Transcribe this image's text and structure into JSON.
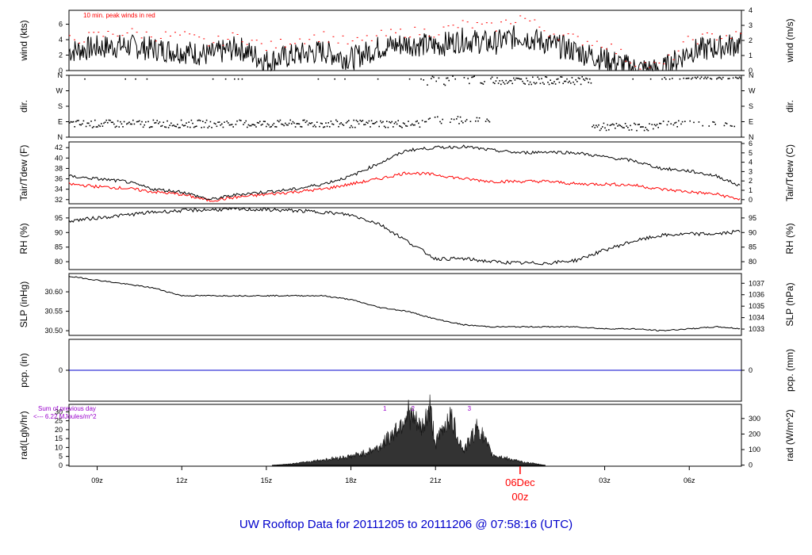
{
  "page_title": "UW Rooftop Data for 20111205  to  20111206 @ 07:58:16  (UTC)",
  "x_axis": {
    "ticks": [
      "09z",
      "12z",
      "15z",
      "18z",
      "21z",
      "03z",
      "06z"
    ],
    "day_label": "06Dec",
    "day_time": "00z",
    "range_hours": [
      8.0,
      31.85
    ]
  },
  "colors": {
    "axis": "#000000",
    "red": "#ff0000",
    "blue": "#0000cc",
    "purple": "#9900cc",
    "title": "#0000cc"
  },
  "panels": {
    "wind": {
      "left_label": "wind (kts)",
      "right_label": "wind (m/s)",
      "note": "10 min. peak winds in red",
      "left_ticks": [
        "0",
        "2",
        "4",
        "6"
      ],
      "right_ticks": [
        "0",
        "1",
        "2",
        "3",
        "4"
      ]
    },
    "dir": {
      "left_label": "dir.",
      "right_label": "dir.",
      "left_ticks": [
        "N",
        "E",
        "S",
        "W",
        "N"
      ],
      "right_ticks": [
        "N",
        "E",
        "S",
        "W",
        "N"
      ]
    },
    "temp": {
      "left_label": "Tair/Tdew (F)",
      "right_label": "Tair/Tdew (C)",
      "left_ticks": [
        "32",
        "34",
        "36",
        "38",
        "40",
        "42"
      ],
      "right_ticks": [
        "0",
        "1",
        "2",
        "3",
        "4",
        "5",
        "6"
      ]
    },
    "rh": {
      "left_label": "RH (%)",
      "right_label": "RH (%)",
      "left_ticks": [
        "80",
        "85",
        "90",
        "95"
      ],
      "right_ticks": [
        "80",
        "85",
        "90",
        "95"
      ]
    },
    "slp": {
      "left_label": "SLP (inHg)",
      "right_label": "SLP (hPa)",
      "left_ticks": [
        "30.50",
        "30.55",
        "30.60"
      ],
      "right_ticks": [
        "1033",
        "1034",
        "1035",
        "1036",
        "1037"
      ]
    },
    "pcp": {
      "left_label": "pcp. (in)",
      "right_label": "pcp. (mm)",
      "left_ticks": [
        "0"
      ],
      "right_ticks": [
        "0"
      ]
    },
    "rad": {
      "left_label": "rad(Lgly/hr)",
      "right_label": "rad (W/m^2)",
      "left_ticks": [
        "0",
        "5",
        "10",
        "15",
        "20",
        "25",
        "30"
      ],
      "right_ticks": [
        "0",
        "100",
        "200",
        "300"
      ],
      "note_line1": "Sum of previous day",
      "note_line2": "<--- 6.22 MJoules/m^2",
      "markers": [
        "1",
        "2",
        "3"
      ]
    }
  },
  "chart_data": {
    "type": "line",
    "x_unit": "hours UTC from 20111205 00z",
    "series": [
      {
        "name": "Tair",
        "unit": "F",
        "x": [
          8,
          9,
          10,
          11,
          12,
          13,
          14,
          15,
          16,
          17,
          18,
          19,
          20,
          21,
          22,
          23,
          24,
          25,
          26,
          27,
          28,
          29,
          30,
          31,
          31.85
        ],
        "y": [
          36.5,
          36.0,
          35.5,
          34.0,
          33.5,
          32.0,
          33.0,
          33.5,
          34.0,
          35.0,
          36.5,
          39.0,
          41.5,
          42.0,
          42.2,
          41.5,
          41.0,
          41.2,
          41.0,
          40.2,
          39.5,
          38.0,
          37.5,
          36.5,
          34.5
        ]
      },
      {
        "name": "Tdew",
        "unit": "F",
        "x": [
          8,
          9,
          10,
          11,
          12,
          13,
          14,
          15,
          16,
          17,
          18,
          19,
          20,
          21,
          22,
          23,
          24,
          25,
          26,
          27,
          28,
          29,
          30,
          31,
          31.85
        ],
        "y": [
          35.0,
          34.5,
          34.2,
          33.5,
          33.0,
          31.8,
          32.5,
          33.0,
          33.5,
          34.0,
          35.0,
          36.0,
          37.2,
          36.8,
          36.0,
          35.5,
          35.5,
          35.5,
          35.0,
          35.0,
          34.8,
          34.0,
          33.5,
          33.0,
          32.0
        ]
      },
      {
        "name": "RH",
        "unit": "%",
        "x": [
          8,
          9,
          10,
          11,
          12,
          13,
          14,
          15,
          16,
          17,
          18,
          19,
          20,
          21,
          22,
          23,
          24,
          25,
          26,
          27,
          28,
          29,
          30,
          31,
          31.85
        ],
        "y": [
          94,
          95,
          96,
          97,
          97.5,
          97.8,
          98,
          97.8,
          97.5,
          97,
          96,
          93,
          87,
          81,
          81,
          80,
          79.5,
          79.5,
          80.5,
          84,
          87,
          89,
          89.5,
          89.5,
          90.5
        ]
      },
      {
        "name": "SLP",
        "unit": "inHg",
        "x": [
          8,
          9,
          10,
          11,
          12,
          13,
          14,
          15,
          16,
          17,
          18,
          19,
          20,
          21,
          22,
          23,
          24,
          25,
          26,
          27,
          28,
          29,
          30,
          31,
          31.85
        ],
        "y": [
          30.64,
          30.63,
          30.62,
          30.61,
          30.59,
          30.59,
          30.59,
          30.59,
          30.59,
          30.59,
          30.58,
          30.56,
          30.55,
          30.53,
          30.515,
          30.51,
          30.51,
          30.51,
          30.51,
          30.505,
          30.505,
          30.5,
          30.505,
          30.51,
          30.505
        ]
      },
      {
        "name": "wind",
        "unit": "kts",
        "x": [
          8,
          9,
          10,
          11,
          12,
          13,
          14,
          15,
          16,
          17,
          18,
          19,
          20,
          21,
          22,
          23,
          24,
          25,
          26,
          27,
          28,
          29,
          30,
          31,
          31.85
        ],
        "y": [
          2.5,
          3.0,
          3.2,
          2.8,
          2.5,
          2.0,
          3.0,
          1.2,
          2.0,
          2.5,
          1.5,
          3.0,
          3.5,
          3.2,
          4.0,
          3.5,
          4.5,
          3.5,
          2.5,
          1.5,
          0.3,
          0.0,
          2.5,
          3.0,
          3.5
        ]
      },
      {
        "name": "peak",
        "unit": "kts",
        "x": [
          8,
          9,
          10,
          11,
          12,
          13,
          14,
          15,
          16,
          17,
          18,
          19,
          20,
          21,
          22,
          23,
          24,
          25,
          26,
          27,
          28,
          29,
          30,
          31,
          31.85
        ],
        "y": [
          4.0,
          4.5,
          5.0,
          4.5,
          4.5,
          3.5,
          4.5,
          3.0,
          4.0,
          4.5,
          3.5,
          4.5,
          5.0,
          5.0,
          6.0,
          5.5,
          7.0,
          5.0,
          4.0,
          3.5,
          1.0,
          0.5,
          4.0,
          4.5,
          4.5
        ]
      },
      {
        "name": "pcp",
        "unit": "in",
        "x": [
          8,
          31.85
        ],
        "y": [
          0,
          0
        ]
      },
      {
        "name": "rad",
        "unit": "Lgly/hr",
        "x": [
          15.2,
          16,
          17,
          18,
          18.5,
          19,
          19.5,
          19.8,
          20,
          20.5,
          20.8,
          21,
          21.5,
          22,
          22.5,
          23,
          23.5,
          24,
          24.5,
          24.9
        ],
        "y": [
          0,
          1,
          3,
          5,
          7,
          10,
          18,
          24,
          30,
          20,
          32,
          12,
          28,
          8,
          22,
          6,
          4,
          2,
          1,
          0
        ]
      }
    ],
    "title": "UW Rooftop Data for 20111205  to  20111206 @ 07:58:16  (UTC)"
  }
}
